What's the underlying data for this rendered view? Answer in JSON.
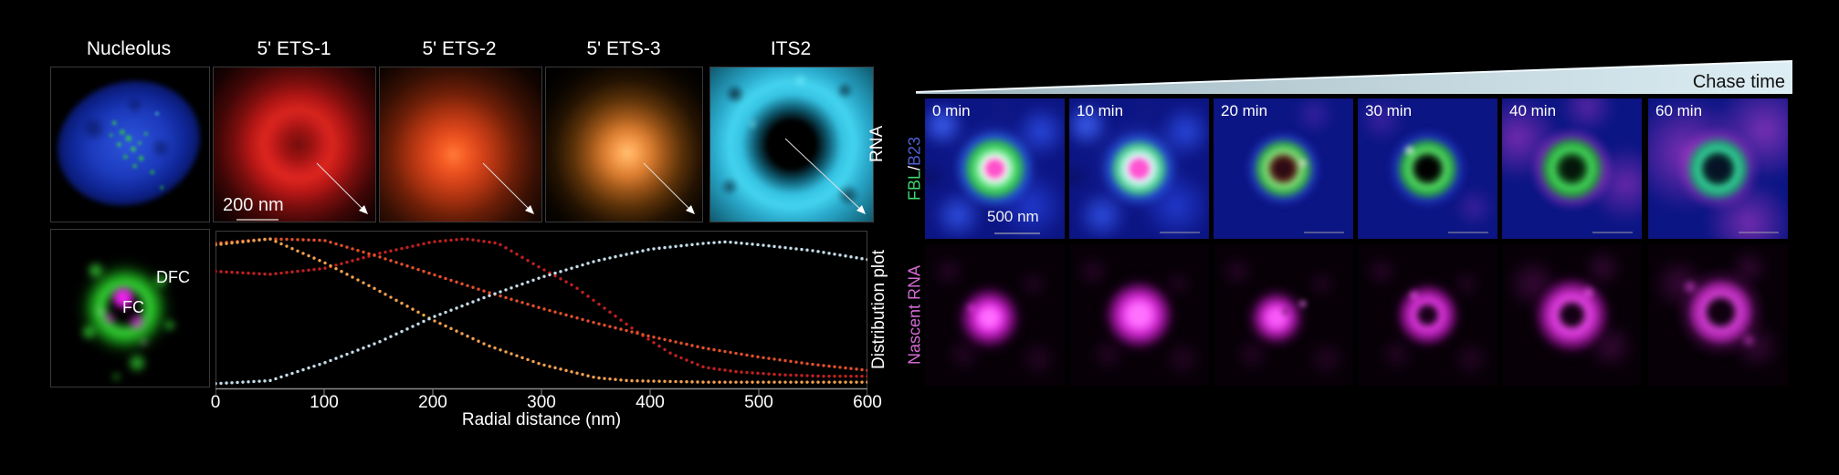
{
  "colors": {
    "fbl_green": "#3fd96e",
    "b23_blue": "#4a5fd4",
    "slash_white": "#ffffff",
    "nascent_magenta": "#d46ad4",
    "chase_text": "#101010",
    "chase_wedge": "#cfe6ee"
  },
  "left_panel": {
    "titles": [
      "Nucleolus",
      "5' ETS-1",
      "5' ETS-2",
      "5' ETS-3",
      "ITS2"
    ],
    "row1_axis_label": "RNA",
    "scale_bar_label": "200 nm",
    "dfc_label": "DFC",
    "fc_label": "FC",
    "row2_axis_label": "Distribution plot"
  },
  "right_panel": {
    "chase_label": "Chase time",
    "time_labels": [
      "0 min",
      "10 min",
      "20 min",
      "30 min",
      "40 min",
      "60 min"
    ],
    "row1_axis": {
      "part_a": "FBL",
      "separator": " / ",
      "part_b": "B23"
    },
    "row2_axis_label": "Nascent RNA",
    "scale_bar_label": "500 nm"
  },
  "chart_data": {
    "type": "scatter",
    "style": "dotted-line",
    "xlabel": "Radial distance (nm)",
    "right_axis_label": "Distribution plot",
    "xlim": [
      0,
      600
    ],
    "ylim": [
      0,
      1.05
    ],
    "x_ticks": [
      0,
      100,
      200,
      300,
      400,
      500,
      600
    ],
    "grid": false,
    "legend": "none (series colors match RNA probe panels above)",
    "series": [
      {
        "name": "5' ETS-1",
        "color": "#c32020",
        "x": [
          0,
          50,
          100,
          150,
          200,
          230,
          260,
          300,
          330,
          360,
          390,
          420,
          450,
          480,
          520,
          560,
          600
        ],
        "y": [
          0.78,
          0.76,
          0.8,
          0.9,
          0.98,
          1.0,
          0.97,
          0.8,
          0.68,
          0.52,
          0.36,
          0.22,
          0.13,
          0.1,
          0.08,
          0.07,
          0.07
        ]
      },
      {
        "name": "5' ETS-2",
        "color": "#e34f2a",
        "x": [
          0,
          50,
          100,
          150,
          200,
          250,
          300,
          350,
          400,
          450,
          500,
          550,
          600
        ],
        "y": [
          0.97,
          1.0,
          0.99,
          0.88,
          0.76,
          0.64,
          0.53,
          0.43,
          0.34,
          0.26,
          0.2,
          0.15,
          0.11
        ]
      },
      {
        "name": "5' ETS-3",
        "color": "#f2a14e",
        "x": [
          0,
          50,
          100,
          150,
          200,
          250,
          300,
          350,
          380,
          450,
          500,
          550,
          600
        ],
        "y": [
          0.96,
          1.0,
          0.84,
          0.65,
          0.45,
          0.28,
          0.15,
          0.06,
          0.04,
          0.03,
          0.03,
          0.03,
          0.03
        ]
      },
      {
        "name": "ITS2",
        "color": "#c5dce8",
        "x": [
          0,
          50,
          100,
          150,
          200,
          250,
          300,
          350,
          400,
          450,
          470,
          500,
          550,
          600
        ],
        "y": [
          0.02,
          0.04,
          0.16,
          0.3,
          0.47,
          0.61,
          0.74,
          0.85,
          0.93,
          0.97,
          0.98,
          0.96,
          0.92,
          0.86
        ]
      }
    ]
  }
}
